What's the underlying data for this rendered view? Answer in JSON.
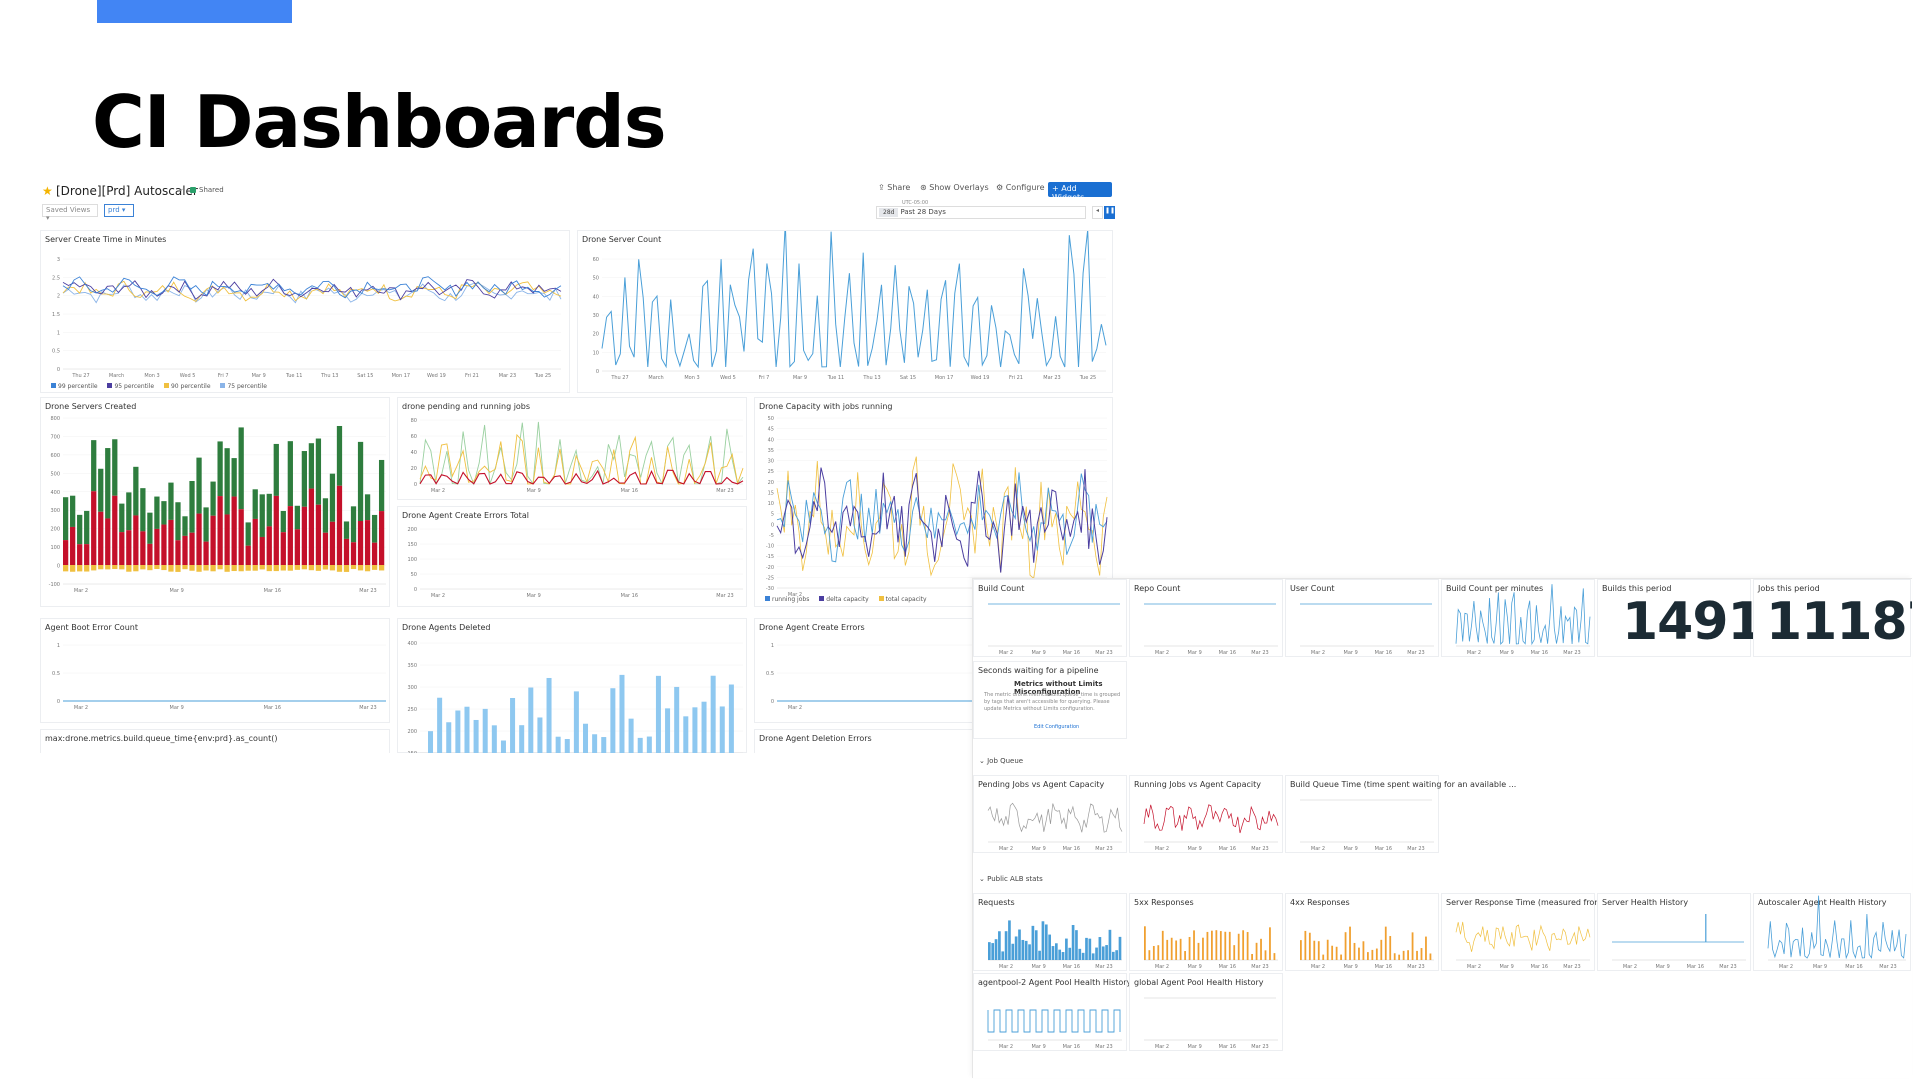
{
  "slide": {
    "title": "CI Dashboards",
    "accent_color": "#4285f4"
  },
  "dashboard": {
    "title": "[Drone][Prd] Autoscaler",
    "shared_label": "Shared",
    "saved_views_label": "Saved Views",
    "env_value": "prd",
    "toolbar": {
      "share": "Share",
      "overlays": "Show Overlays",
      "configure": "Configure",
      "add_widgets": "+ Add Widgets"
    },
    "timezone": "UTC-05:00",
    "time_range": {
      "pill": "28d",
      "label": "Past 28 Days"
    },
    "colors": {
      "primary": "#1a6fd2",
      "line_blue": "#4a9fd8",
      "green_bar": "#2e7d3e",
      "red_bar": "#c4102a",
      "yellow": "#f0c040",
      "purple": "#4b3ea0",
      "orange": "#f0a030"
    }
  },
  "widgets": {
    "server_create_time": {
      "title": "Server Create Time in Minutes",
      "y_ticks": [
        "3",
        "2.5",
        "2",
        "1.5",
        "1",
        "0.5",
        "0"
      ],
      "x_ticks": [
        "Thu 27",
        "March",
        "Mon 3",
        "Wed 5",
        "Fri 7",
        "Mar 9",
        "Tue 11",
        "Thu 13",
        "Sat 15",
        "Mon 17",
        "Wed 19",
        "Fri 21",
        "Mar 23",
        "Tue 25"
      ],
      "legend": [
        "99 percentile",
        "95 percentile",
        "90 percentile",
        "75 percentile"
      ]
    },
    "drone_server_count": {
      "title": "Drone Server Count",
      "y_ticks": [
        "60",
        "50",
        "40",
        "30",
        "20",
        "10",
        "0"
      ],
      "x_ticks": [
        "Thu 27",
        "March",
        "Mon 3",
        "Wed 5",
        "Fri 7",
        "Mar 9",
        "Tue 11",
        "Thu 13",
        "Sat 15",
        "Mon 17",
        "Wed 19",
        "Fri 21",
        "Mar 23",
        "Tue 25"
      ]
    },
    "servers_created": {
      "title": "Drone Servers Created",
      "y_ticks": [
        "800",
        "700",
        "600",
        "500",
        "400",
        "300",
        "200",
        "100",
        "0",
        "-100"
      ],
      "x_ticks": [
        "Mar 2",
        "Mar 9",
        "Mar 16",
        "Mar 23"
      ]
    },
    "pending_running": {
      "title": "drone pending and running jobs",
      "y_ticks": [
        "80",
        "60",
        "40",
        "20",
        "0"
      ],
      "x_ticks": [
        "Mar 2",
        "Mar 9",
        "Mar 16",
        "Mar 23"
      ]
    },
    "agent_create_errors_total": {
      "title": "Drone Agent Create Errors Total",
      "y_ticks": [
        "200",
        "150",
        "100",
        "50",
        "0"
      ],
      "x_ticks": [
        "Mar 2",
        "Mar 9",
        "Mar 16",
        "Mar 23"
      ]
    },
    "capacity": {
      "title": "Drone Capacity with jobs running",
      "y_ticks": [
        "50",
        "45",
        "40",
        "35",
        "30",
        "25",
        "20",
        "15",
        "10",
        "5",
        "0",
        "-5",
        "-10",
        "-15",
        "-20",
        "-25",
        "-30"
      ],
      "x_ticks": [
        "Mar 2",
        "Mar 9"
      ],
      "legend": [
        "running jobs",
        "delta capacity",
        "total capacity"
      ]
    },
    "boot_errors": {
      "title": "Agent Boot Error Count",
      "y_ticks": [
        "1",
        "0.5",
        "0"
      ],
      "x_ticks": [
        "Mar 2",
        "Mar 9",
        "Mar 16",
        "Mar 23"
      ]
    },
    "agents_deleted": {
      "title": "Drone Agents Deleted",
      "y_ticks": [
        "400",
        "350",
        "300",
        "250",
        "200",
        "150"
      ]
    },
    "agent_create_errors": {
      "title": "Drone Agent Create Errors",
      "y_ticks": [
        "1",
        "0.5",
        "0"
      ],
      "x_ticks": [
        "Mar 2",
        "Mar 9"
      ]
    },
    "queue_time": {
      "title": "max:drone.metrics.build.queue_time{env:prd}.as_count()"
    },
    "deletion_errors": {
      "title": "Drone Agent Deletion Errors"
    }
  },
  "overview": {
    "build_count": "Build Count",
    "repo_count": "Repo Count",
    "user_count": "User Count",
    "build_count_per_minute": "Build Count per minutes",
    "builds_this_period": "Builds this period",
    "builds_value": "1491",
    "jobs_this_period": "Jobs this period",
    "jobs_value": "11187",
    "seconds_waiting": "Seconds waiting for a pipeline",
    "warning_title": "Metrics without Limits Misconfiguration",
    "warning_text": "The metric drone.metrics.build.queue_time is grouped by tags that aren't accessible for querying. Please update Metrics without Limits configuration.",
    "warning_link": "Edit Configuration",
    "job_queue_section": "Job Queue",
    "pending_vs_capacity": "Pending Jobs vs Agent Capacity",
    "running_vs_capacity": "Running Jobs vs Agent Capacity",
    "queue_time_widget": "Build Queue Time (time spent waiting for an available ...",
    "alb_section": "Public ALB stats",
    "requests": "Requests",
    "resp_5xx": "5xx Responses",
    "resp_4xx": "4xx Responses",
    "server_response_time": "Server Response Time (measured from LB)",
    "server_health": "Server Health History",
    "autoscaler_health": "Autoscaler Agent Health History",
    "agentpool_health": "agentpool-2 Agent Pool Health History",
    "global_pool_health": "global Agent Pool Health History",
    "mini_x_ticks": [
      "Mar 2",
      "Mar 9",
      "Mar 16",
      "Mar 23"
    ]
  }
}
